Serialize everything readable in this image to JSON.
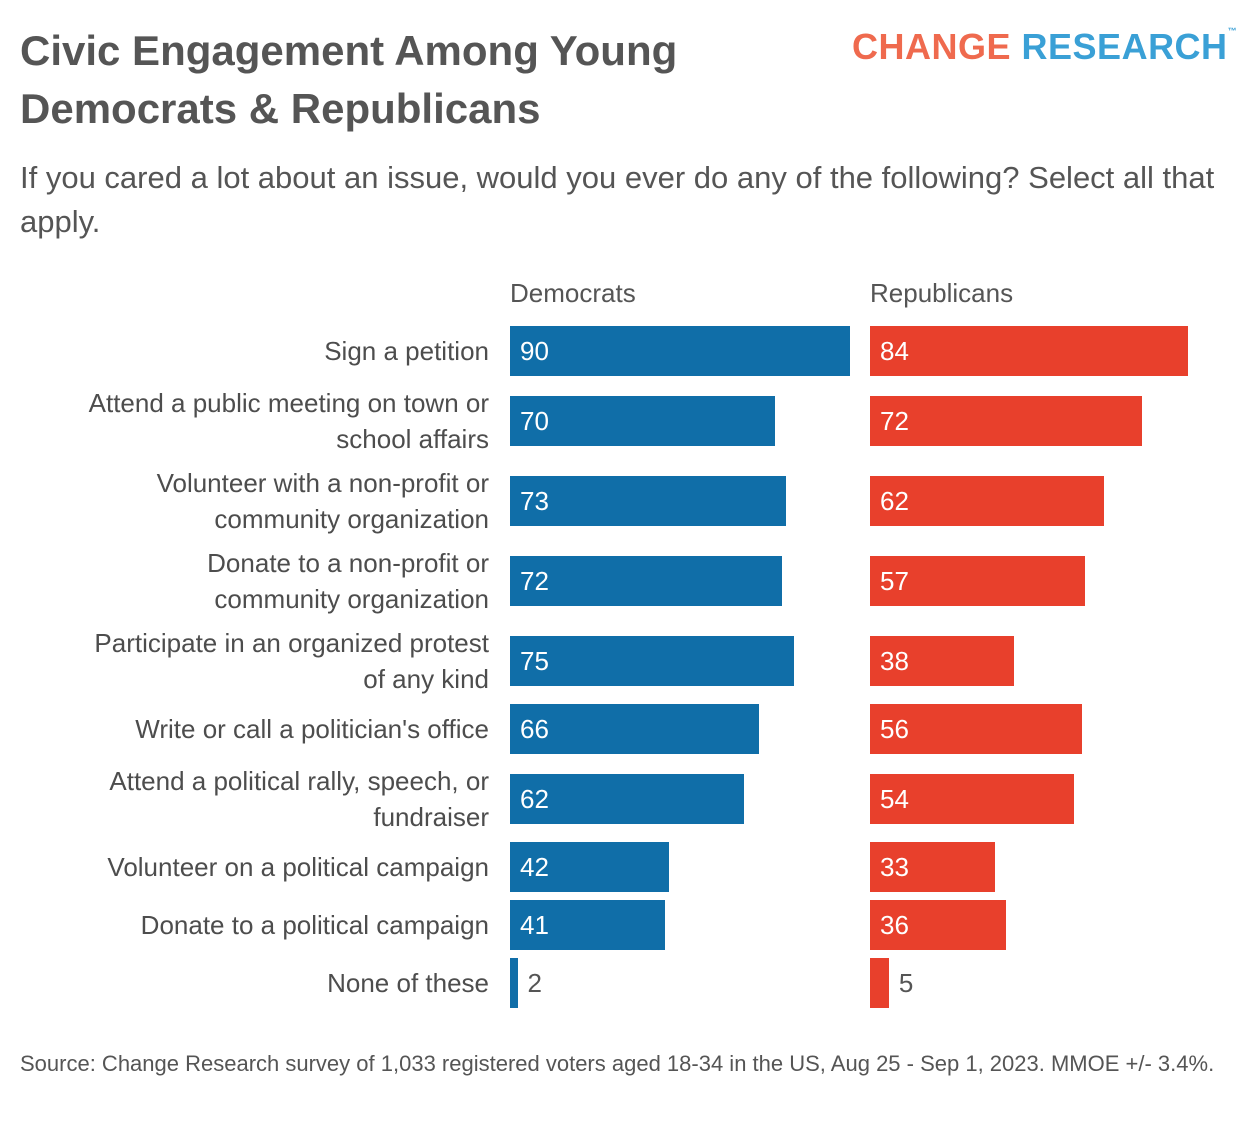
{
  "title": "Civic Engagement Among Young Democrats & Republicans",
  "logo": {
    "part1": "CHANGE",
    "part2": "RESEARCH",
    "tm": "™"
  },
  "subtitle": "If you cared a lot about an issue, would you ever do any of the following? Select all that apply.",
  "source": "Source: Change Research survey of 1,033 registered voters aged 18-34 in the US, Aug 25 - Sep 1, 2023. MMOE +/- 3.4%.",
  "chart_data": {
    "type": "bar",
    "orientation": "horizontal",
    "categories": [
      "Sign a petition",
      "Attend a public meeting on town or school affairs",
      "Volunteer with a non-profit or community organization",
      "Donate to a non-profit or community organization",
      "Participate in an organized protest of any kind",
      "Write or call a politician's office",
      "Attend a political rally, speech, or fundraiser",
      "Volunteer on a political campaign",
      "Donate to a political campaign",
      "None of these"
    ],
    "category_display": [
      "Sign a petition",
      "Attend a public meeting on town or\nschool affairs",
      "Volunteer with a non-profit or\ncommunity organization",
      "Donate to a non-profit or\ncommunity organization",
      "Participate in an organized protest\nof any kind",
      "Write or call a politician's office",
      "Attend a political rally, speech, or\nfundraiser",
      "Volunteer on a political campaign",
      "Donate to a political campaign",
      "None of these"
    ],
    "series": [
      {
        "name": "Democrats",
        "color": "#106ea8",
        "values": [
          90,
          70,
          73,
          72,
          75,
          66,
          62,
          42,
          41,
          2
        ]
      },
      {
        "name": "Republicans",
        "color": "#e8402c",
        "values": [
          84,
          72,
          62,
          57,
          38,
          56,
          54,
          33,
          36,
          5
        ]
      }
    ],
    "xlim": [
      0,
      90
    ],
    "grid": false,
    "data_labels": true
  }
}
